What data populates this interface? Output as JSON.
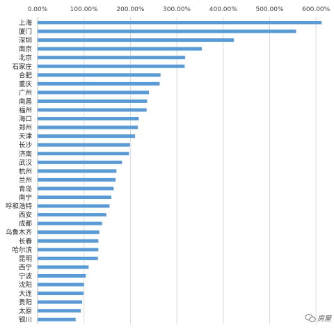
{
  "chart_data": {
    "type": "bar",
    "orientation": "horizontal",
    "categories": [
      "上海",
      "厦门",
      "深圳",
      "南京",
      "北京",
      "石家庄",
      "合肥",
      "重庆",
      "广州",
      "南昌",
      "福州",
      "海口",
      "郑州",
      "天津",
      "长沙",
      "济南",
      "武汉",
      "杭州",
      "兰州",
      "青岛",
      "南宁",
      "呼和浩特",
      "西安",
      "成都",
      "乌鲁木齐",
      "长春",
      "哈尔滨",
      "昆明",
      "西宁",
      "宁波",
      "沈阳",
      "大连",
      "贵阳",
      "太原",
      "银川"
    ],
    "values": [
      612,
      557,
      423,
      354,
      318,
      317,
      265,
      263,
      240,
      236,
      235,
      218,
      216,
      210,
      199,
      197,
      182,
      170,
      168,
      164,
      159,
      155,
      148,
      139,
      133,
      131,
      131,
      130,
      110,
      104,
      100,
      99,
      96,
      93,
      82
    ],
    "ticks": [
      "0.00%",
      "100.00%",
      "200.00%",
      "300.00%",
      "400.00%",
      "500.00%",
      "600.00%"
    ],
    "xlim": [
      0,
      620
    ],
    "unit": "%",
    "grid": true,
    "bar_color": "#5B9BD5",
    "grid_color": "#D9D9D9"
  },
  "watermark": "房屋"
}
